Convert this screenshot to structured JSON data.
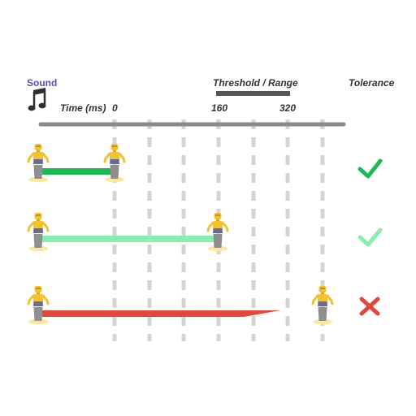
{
  "header": {
    "sound_label": "Sound",
    "threshold_label": "Threshold / Range",
    "tolerance_label": "Tolerance",
    "time_label": "Time (ms)",
    "ticks": [
      "0",
      "160",
      "320"
    ]
  },
  "icons": {
    "sound": "music-note-icon",
    "figure": "robot-figure-icon"
  },
  "colors": {
    "sound_label": "#5b4fbf",
    "axis": "#8a8a8a",
    "threshold_bar": "#555555",
    "grid": "#d4d4d4",
    "figure_body": "#f2c230",
    "figure_base": "#fbe89a",
    "ok_strong": "#1db954",
    "ok_light": "#86efac",
    "fail": "#e0483a"
  },
  "rows": [
    {
      "result": "pass",
      "color_key": "ok_strong",
      "mark": "check"
    },
    {
      "result": "pass",
      "color_key": "ok_light",
      "mark": "check"
    },
    {
      "result": "fail",
      "color_key": "fail",
      "mark": "cross"
    }
  ]
}
